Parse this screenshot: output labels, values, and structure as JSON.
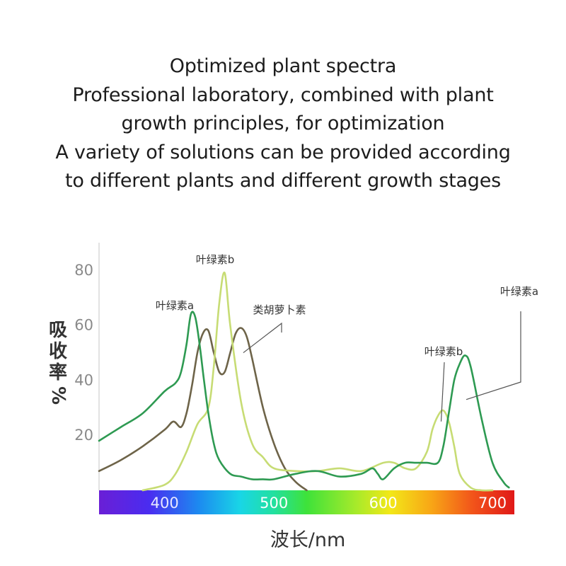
{
  "headline": [
    "Optimized plant spectra",
    "Professional laboratory, combined with plant",
    "growth principles, for optimization",
    "A variety of solutions can be provided according",
    "to different plants and different growth stages"
  ],
  "chart_data": {
    "type": "line",
    "xlabel": "波长/nm",
    "ylabel": "吸收率%",
    "xlim": [
      340,
      720
    ],
    "ylim": [
      0,
      90
    ],
    "xticks": [
      400,
      500,
      600,
      700
    ],
    "yticks": [
      20,
      40,
      60,
      80
    ],
    "grid": false,
    "legend": "none",
    "spectrum_bar": true,
    "colors": {
      "chlorophyll_a": "#2e9a52",
      "chlorophyll_b": "#c7dc74",
      "carotenoid": "#6e6449",
      "axis": "#cfcfcf",
      "tick_text": "#8a8a8a",
      "label_text": "#333333"
    },
    "series": [
      {
        "key": "chlorophyll_a",
        "x": [
          340,
          360,
          380,
          400,
          410,
          415,
          420,
          424,
          428,
          432,
          436,
          440,
          445,
          450,
          460,
          470,
          480,
          490,
          500,
          520,
          540,
          560,
          580,
          590,
          595,
          600,
          610,
          620,
          630,
          640,
          650,
          655,
          660,
          665,
          670,
          675,
          680,
          690,
          700,
          710,
          715
        ],
        "y": [
          18,
          23,
          28,
          36,
          39,
          43,
          53,
          64,
          63,
          53,
          40,
          28,
          17,
          11,
          6,
          5,
          4,
          4,
          4,
          6,
          7,
          5,
          6,
          8,
          6,
          4,
          8,
          10,
          10,
          10,
          10,
          16,
          28,
          40,
          46,
          49,
          45,
          26,
          10,
          3,
          1
        ]
      },
      {
        "key": "carotenoid",
        "x": [
          340,
          360,
          380,
          400,
          408,
          415,
          420,
          425,
          430,
          435,
          440,
          445,
          450,
          455,
          460,
          465,
          470,
          475,
          480,
          490,
          500,
          510,
          520,
          530
        ],
        "y": [
          7,
          11,
          16,
          22,
          25,
          23,
          28,
          38,
          50,
          57,
          58,
          50,
          43,
          43,
          50,
          57,
          59,
          56,
          48,
          30,
          17,
          8,
          3,
          0
        ]
      },
      {
        "key": "chlorophyll_b",
        "x": [
          380,
          400,
          410,
          420,
          430,
          440,
          445,
          450,
          455,
          460,
          470,
          480,
          490,
          500,
          520,
          540,
          560,
          580,
          600,
          610,
          620,
          630,
          640,
          645,
          650,
          655,
          660,
          665,
          670,
          680,
          690,
          700
        ],
        "y": [
          0,
          2,
          6,
          14,
          24,
          30,
          45,
          68,
          79,
          60,
          32,
          17,
          12,
          8,
          7,
          7,
          8,
          7,
          10,
          10,
          8,
          8,
          14,
          22,
          27,
          29,
          25,
          16,
          6,
          1,
          0,
          0
        ]
      }
    ],
    "annotations": [
      {
        "text": "叶绿素a",
        "series": "chlorophyll_a",
        "x": 430,
        "y": 66
      },
      {
        "text": "叶绿素b",
        "series": "chlorophyll_b",
        "x": 453,
        "y": 81
      },
      {
        "text": "类胡萝卜素",
        "series": "carotenoid",
        "x": 472,
        "y": 50
      },
      {
        "text": "叶绿素b",
        "series": "chlorophyll_b",
        "x": 653,
        "y": 25
      },
      {
        "text": "叶绿素a",
        "series": "chlorophyll_a",
        "x": 676,
        "y": 33
      }
    ]
  }
}
